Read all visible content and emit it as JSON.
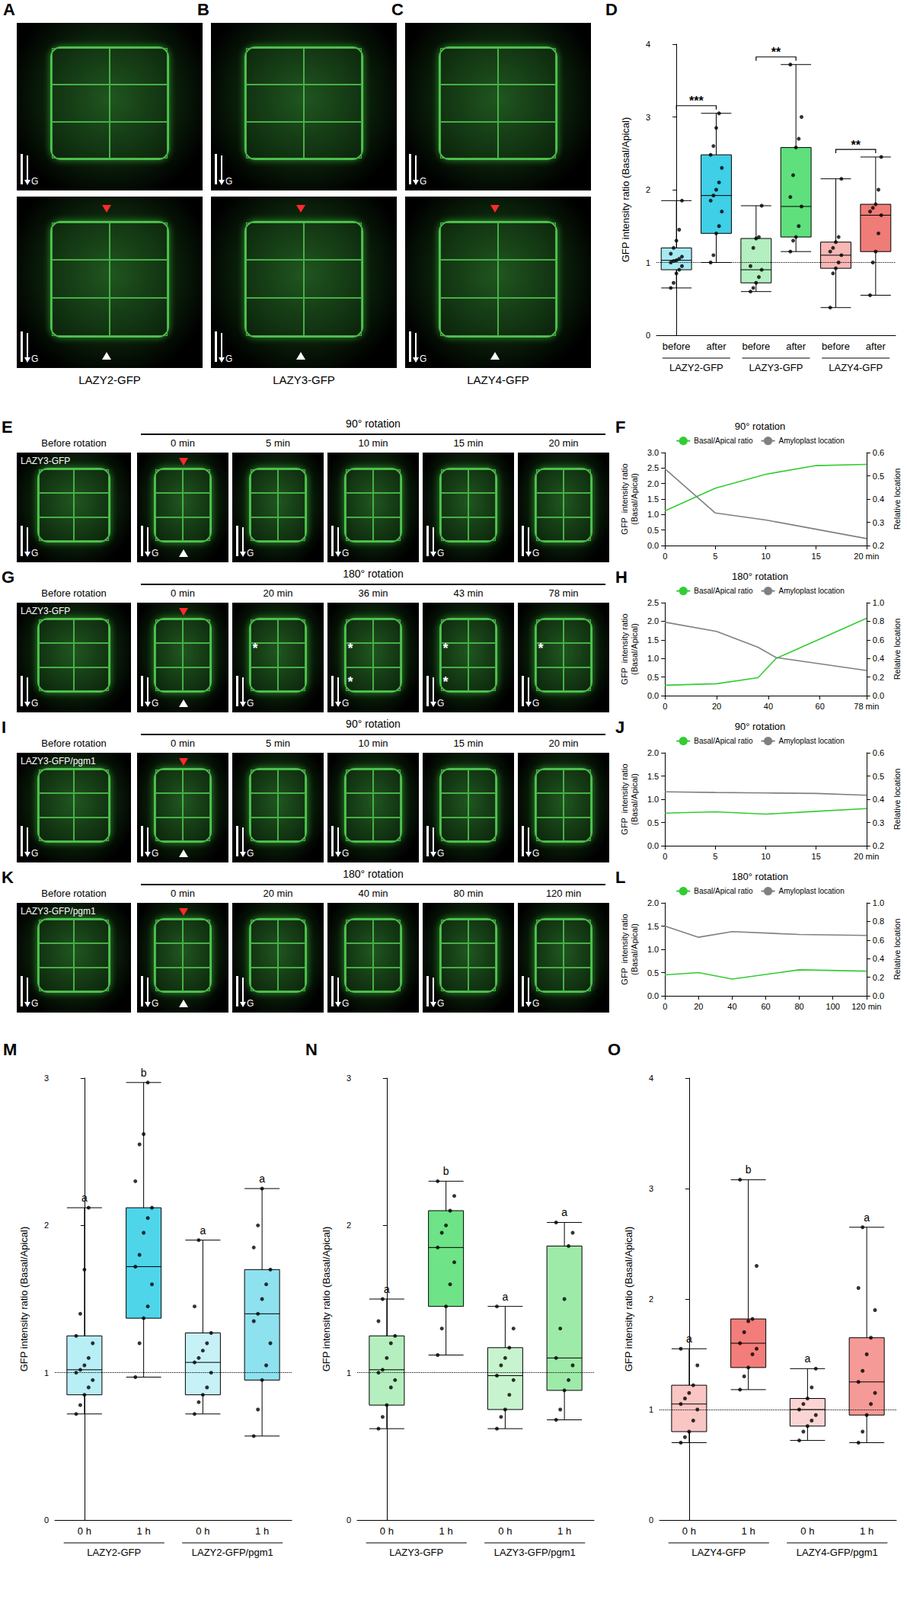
{
  "image_panels": {
    "gravity_label": "G",
    "top_row": [
      {
        "label": "A",
        "caption": "LAZY2-GFP"
      },
      {
        "label": "B",
        "caption": "LAZY3-GFP"
      },
      {
        "label": "C",
        "caption": "LAZY4-GFP"
      }
    ],
    "time_rows": [
      {
        "label": "E",
        "construct": "LAZY3-GFP",
        "before": "Before rotation",
        "rotation": "90° rotation",
        "times": [
          "0 min",
          "5 min",
          "10 min",
          "15 min",
          "20 min"
        ]
      },
      {
        "label": "G",
        "construct": "LAZY3-GFP",
        "before": "Before rotation",
        "rotation": "180° rotation",
        "times": [
          "0 min",
          "20 min",
          "36 min",
          "43 min",
          "78 min"
        ],
        "annotations": [
          [],
          [
            "*"
          ],
          [
            "*",
            "*"
          ],
          [
            "*",
            "*"
          ],
          [
            "*"
          ]
        ]
      },
      {
        "label": "I",
        "construct": "LAZY3-GFP/pgm1",
        "before": "Before rotation",
        "rotation": "90° rotation",
        "times": [
          "0 min",
          "5 min",
          "10 min",
          "15 min",
          "20 min"
        ]
      },
      {
        "label": "K",
        "construct": "LAZY3-GFP/pgm1",
        "before": "Before rotation",
        "rotation": "180° rotation",
        "times": [
          "0 min",
          "20 min",
          "40 min",
          "80 min",
          "120 min"
        ]
      }
    ]
  },
  "chart_data": [
    {
      "type": "boxplot",
      "panel": "D",
      "ylabel": "GFP intensity ratio (Basal/Apical)",
      "categories": [
        "before",
        "after",
        "before",
        "after",
        "before",
        "after"
      ],
      "groups": [
        "LAZY2-GFP",
        "LAZY3-GFP",
        "LAZY4-GFP"
      ],
      "values": [
        [
          0.65,
          0.9,
          1.03,
          1.2,
          1.85
        ],
        [
          1.0,
          1.4,
          1.92,
          2.48,
          3.05
        ],
        [
          0.6,
          0.72,
          0.9,
          1.33,
          1.78
        ],
        [
          1.15,
          1.35,
          1.77,
          2.58,
          3.72
        ],
        [
          0.38,
          0.92,
          1.1,
          1.28,
          2.15
        ],
        [
          0.55,
          1.15,
          1.65,
          1.8,
          2.45
        ]
      ],
      "points": [
        [
          0.65,
          0.72,
          0.85,
          0.9,
          0.95,
          1.0,
          1.02,
          1.03,
          1.05,
          1.08,
          1.12,
          1.2,
          1.3,
          1.45,
          1.85
        ],
        [
          1.0,
          1.1,
          1.4,
          1.5,
          1.7,
          1.85,
          1.92,
          2.0,
          2.1,
          2.3,
          2.48,
          2.6,
          2.85,
          3.05
        ],
        [
          0.6,
          0.65,
          0.72,
          0.8,
          0.9,
          0.95,
          1.2,
          1.33,
          1.35,
          1.78
        ],
        [
          1.15,
          1.3,
          1.35,
          1.5,
          1.77,
          1.9,
          2.2,
          2.58,
          2.7,
          3.0,
          3.72
        ],
        [
          0.38,
          0.85,
          0.92,
          1.0,
          1.1,
          1.15,
          1.2,
          1.28,
          1.35,
          2.15
        ],
        [
          0.55,
          1.0,
          1.15,
          1.4,
          1.65,
          1.7,
          1.75,
          1.8,
          2.0,
          2.45
        ]
      ],
      "colors": [
        "#a6e9f3",
        "#3fcfe6",
        "#b3efc0",
        "#5fe07c",
        "#f6b7b5",
        "#f07c78"
      ],
      "significance": [
        "***",
        "**",
        "**"
      ],
      "reference_line": 1,
      "ylim": [
        0,
        4
      ],
      "yticks": [
        0,
        1,
        2,
        3,
        4
      ],
      "grid": false
    },
    {
      "type": "line",
      "panel": "F",
      "title": "90° rotation",
      "x": [
        0,
        5,
        10,
        15,
        20
      ],
      "xlim": [
        0,
        20
      ],
      "xticks": [
        0,
        5,
        10,
        15,
        {
          "value": 20,
          "label": "20 min"
        }
      ],
      "ylabel": "GFP  intensity ratio\n(Basal/Apical)",
      "y2label": "Relative location",
      "ylim": [
        0,
        3
      ],
      "yticks": [
        {
          "value": 0,
          "label": "0.0"
        },
        0.5,
        {
          "value": 1,
          "label": "1.0"
        },
        1.5,
        {
          "value": 2,
          "label": "2.0"
        },
        2.5,
        {
          "value": 3,
          "label": "3.0"
        }
      ],
      "y2lim": [
        0.2,
        0.6
      ],
      "y2ticks": [
        0.2,
        0.3,
        0.4,
        0.5,
        0.6
      ],
      "series": [
        {
          "name": "Basal/Apical ratio",
          "color": "#33cc33",
          "marker": "none",
          "values": [
            1.12,
            1.85,
            2.3,
            2.58,
            2.62
          ]
        },
        {
          "name": "Amyloplast location",
          "color": "#808080",
          "marker": "none",
          "axis": "y2",
          "values": [
            0.53,
            0.34,
            0.31,
            0.27,
            0.23
          ]
        }
      ],
      "legend": "top",
      "grid": false
    },
    {
      "type": "line",
      "panel": "H",
      "title": "180° rotation",
      "x": [
        0,
        20,
        36,
        43,
        78
      ],
      "xlim": [
        0,
        78
      ],
      "xticks": [
        0,
        20,
        40,
        60,
        {
          "value": 78,
          "label": "78 min"
        }
      ],
      "ylabel": "GFP  intensity ratio\n(Basal/Apical)",
      "y2label": "Relative location",
      "ylim": [
        0,
        2.5
      ],
      "yticks": [
        {
          "value": 0,
          "label": "0.0"
        },
        0.5,
        {
          "value": 1,
          "label": "1.0"
        },
        1.5,
        {
          "value": 2,
          "label": "2.0"
        },
        2.5
      ],
      "y2lim": [
        0,
        1
      ],
      "y2ticks": [
        {
          "value": 0,
          "label": "0.0"
        },
        0.2,
        0.4,
        0.6,
        0.8,
        {
          "value": 1,
          "label": "1.0"
        }
      ],
      "series": [
        {
          "name": "Basal/Apical ratio",
          "color": "#33cc33",
          "marker": "none",
          "values": [
            0.28,
            0.32,
            0.48,
            1.0,
            2.08
          ]
        },
        {
          "name": "Amyloplast location",
          "color": "#808080",
          "marker": "none",
          "axis": "y2",
          "values": [
            0.79,
            0.69,
            0.52,
            0.41,
            0.27
          ]
        }
      ],
      "legend": "top",
      "grid": false
    },
    {
      "type": "line",
      "panel": "J",
      "title": "90° rotation",
      "x": [
        0,
        5,
        10,
        15,
        20
      ],
      "xlim": [
        0,
        20
      ],
      "xticks": [
        0,
        5,
        10,
        15,
        {
          "value": 20,
          "label": "20 min"
        }
      ],
      "ylabel": "GFP  intensity ratio\n(Basal/Apical)",
      "y2label": "Relative location",
      "ylim": [
        0,
        2
      ],
      "yticks": [
        {
          "value": 0,
          "label": "0.0"
        },
        0.5,
        {
          "value": 1,
          "label": "1.0"
        },
        1.5,
        {
          "value": 2,
          "label": "2.0"
        }
      ],
      "y2lim": [
        0.2,
        0.6
      ],
      "y2ticks": [
        0.2,
        0.3,
        0.4,
        0.5,
        0.6
      ],
      "series": [
        {
          "name": "Basal/Apical ratio",
          "color": "#33cc33",
          "marker": "none",
          "values": [
            0.7,
            0.73,
            0.68,
            0.74,
            0.8
          ]
        },
        {
          "name": "Amyloplast location",
          "color": "#808080",
          "marker": "none",
          "axis": "y2",
          "values": [
            0.432,
            0.429,
            0.427,
            0.425,
            0.417
          ]
        }
      ],
      "legend": "top",
      "grid": false
    },
    {
      "type": "line",
      "panel": "L",
      "title": "180° rotation",
      "x": [
        0,
        20,
        40,
        80,
        120
      ],
      "xlim": [
        0,
        120
      ],
      "xticks": [
        0,
        20,
        40,
        60,
        80,
        100,
        {
          "value": 120,
          "label": "120 min"
        }
      ],
      "ylabel": "GFP  intensity ratio\n(Basal/Apical)",
      "y2label": "Relative location",
      "ylim": [
        0,
        2
      ],
      "yticks": [
        {
          "value": 0,
          "label": "0.0"
        },
        0.5,
        {
          "value": 1,
          "label": "1.0"
        },
        1.5,
        {
          "value": 2,
          "label": "2.0"
        }
      ],
      "y2lim": [
        0,
        1
      ],
      "y2ticks": [
        {
          "value": 0,
          "label": "0.0"
        },
        0.2,
        0.4,
        0.6,
        0.8,
        {
          "value": 1,
          "label": "1.0"
        }
      ],
      "series": [
        {
          "name": "Basal/Apical ratio",
          "color": "#33cc33",
          "marker": "none",
          "values": [
            0.45,
            0.5,
            0.36,
            0.56,
            0.53
          ]
        },
        {
          "name": "Amyloplast location",
          "color": "#808080",
          "marker": "none",
          "axis": "y2",
          "values": [
            0.75,
            0.63,
            0.69,
            0.66,
            0.65
          ]
        }
      ],
      "legend": "top",
      "grid": false
    },
    {
      "type": "boxplot",
      "panel": "M",
      "ylabel": "GFP intensity ratio (Basal/Apical)",
      "categories": [
        "0 h",
        "1 h",
        "0 h",
        "1 h"
      ],
      "groups": [
        "LAZY2-GFP",
        "LAZY2-GFP/pgm1"
      ],
      "values": [
        [
          0.72,
          0.85,
          1.02,
          1.25,
          2.12
        ],
        [
          0.97,
          1.37,
          1.72,
          2.12,
          2.97
        ],
        [
          0.72,
          0.85,
          1.07,
          1.27,
          1.9
        ],
        [
          0.57,
          0.95,
          1.4,
          1.7,
          2.25
        ]
      ],
      "points": [
        [
          0.72,
          0.78,
          0.85,
          0.9,
          0.95,
          1.0,
          1.02,
          1.05,
          1.1,
          1.2,
          1.25,
          1.4,
          1.7,
          2.12
        ],
        [
          0.97,
          1.2,
          1.37,
          1.45,
          1.6,
          1.72,
          1.8,
          1.95,
          2.05,
          2.12,
          2.3,
          2.55,
          2.62,
          2.97
        ],
        [
          0.72,
          0.8,
          0.85,
          0.9,
          1.0,
          1.07,
          1.1,
          1.15,
          1.2,
          1.27,
          1.45,
          1.9
        ],
        [
          0.57,
          0.75,
          0.95,
          1.05,
          1.2,
          1.35,
          1.4,
          1.5,
          1.6,
          1.7,
          1.85,
          2.0,
          2.25
        ]
      ],
      "colors": [
        "#b8eef6",
        "#4fd5ea",
        "#c6f1f7",
        "#8ee1ee"
      ],
      "letters": [
        "a",
        "b",
        "a",
        "a"
      ],
      "reference_line": 1,
      "ylim": [
        0,
        3
      ],
      "yticks": [
        0,
        1,
        2,
        3
      ],
      "grid": false
    },
    {
      "type": "boxplot",
      "panel": "N",
      "ylabel": "GFP intensity ratio (Basal/Apical)",
      "categories": [
        "0 h",
        "1 h",
        "0 h",
        "1 h"
      ],
      "groups": [
        "LAZY3-GFP",
        "LAZY3-GFP/pgm1"
      ],
      "values": [
        [
          0.62,
          0.78,
          1.02,
          1.25,
          1.5
        ],
        [
          1.12,
          1.45,
          1.85,
          2.1,
          2.3
        ],
        [
          0.62,
          0.75,
          0.98,
          1.17,
          1.45
        ],
        [
          0.68,
          0.88,
          1.1,
          1.86,
          2.02
        ]
      ],
      "points": [
        [
          0.62,
          0.7,
          0.78,
          0.9,
          0.95,
          1.0,
          1.02,
          1.1,
          1.2,
          1.25,
          1.35,
          1.5
        ],
        [
          1.12,
          1.3,
          1.45,
          1.6,
          1.75,
          1.85,
          1.95,
          2.0,
          2.1,
          2.2,
          2.3
        ],
        [
          0.62,
          0.7,
          0.75,
          0.85,
          0.95,
          0.98,
          1.05,
          1.1,
          1.17,
          1.3,
          1.45
        ],
        [
          0.68,
          0.75,
          0.88,
          0.95,
          1.05,
          1.1,
          1.3,
          1.5,
          1.86,
          1.95,
          2.02
        ]
      ],
      "colors": [
        "#b5efbf",
        "#6ee387",
        "#c8f3cf",
        "#9eeaa9"
      ],
      "letters": [
        "a",
        "b",
        "a",
        "a"
      ],
      "reference_line": 1,
      "ylim": [
        0,
        3
      ],
      "yticks": [
        0,
        1,
        2,
        3
      ],
      "grid": false
    },
    {
      "type": "boxplot",
      "panel": "O",
      "ylabel": "GFP intensity ratio (Basal/Apical)",
      "categories": [
        "0 h",
        "1 h",
        "0 h",
        "1 h"
      ],
      "groups": [
        "LAZY4-GFP",
        "LAZY4-GFP/pgm1"
      ],
      "values": [
        [
          0.7,
          0.8,
          1.05,
          1.22,
          1.55
        ],
        [
          1.18,
          1.38,
          1.6,
          1.82,
          3.08
        ],
        [
          0.72,
          0.85,
          1.0,
          1.1,
          1.37
        ],
        [
          0.7,
          0.95,
          1.25,
          1.65,
          2.65
        ]
      ],
      "points": [
        [
          0.7,
          0.75,
          0.8,
          0.9,
          1.0,
          1.05,
          1.1,
          1.15,
          1.22,
          1.4,
          1.55
        ],
        [
          1.18,
          1.3,
          1.38,
          1.5,
          1.55,
          1.6,
          1.7,
          1.8,
          1.82,
          2.3,
          3.08
        ],
        [
          0.72,
          0.8,
          0.85,
          0.9,
          0.95,
          1.0,
          1.05,
          1.1,
          1.2,
          1.37
        ],
        [
          0.7,
          0.8,
          0.95,
          1.05,
          1.15,
          1.25,
          1.35,
          1.5,
          1.65,
          1.9,
          2.1,
          2.65
        ]
      ],
      "colors": [
        "#f9c6c4",
        "#f27d7a",
        "#fbd5d3",
        "#f59a97"
      ],
      "letters": [
        "a",
        "b",
        "a",
        "a"
      ],
      "reference_line": 1,
      "ylim": [
        0,
        4
      ],
      "yticks": [
        0,
        1,
        2,
        3,
        4
      ],
      "grid": false
    }
  ]
}
